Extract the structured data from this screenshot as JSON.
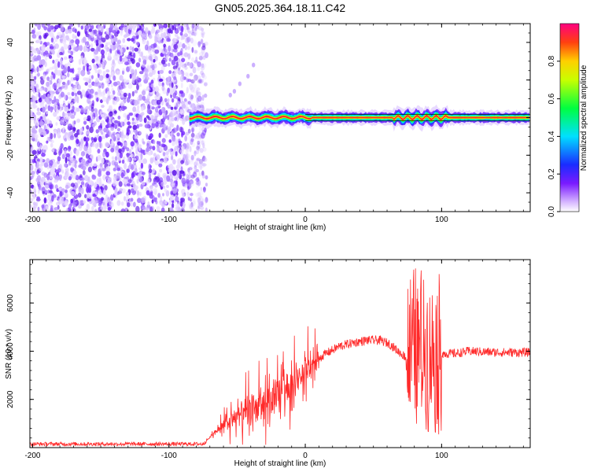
{
  "title": "GN05.2025.364.18.11.C42",
  "chart_data": [
    {
      "type": "heatmap",
      "title": "GN05.2025.364.18.11.C42",
      "xlabel": "Height of straight line (km)",
      "ylabel": "Frequency (Hz)",
      "xlim": [
        -202,
        165
      ],
      "ylim": [
        -50,
        50
      ],
      "xticks": [
        -200,
        -100,
        0,
        100
      ],
      "yticks": [
        -40,
        -20,
        0,
        20,
        40
      ],
      "description_regions": {
        "noise_region_x": [
          -202,
          -77
        ],
        "signal_track_frequency_hz": 0,
        "signal_track_x": [
          -85,
          165
        ]
      },
      "colorbar": {
        "label": "Normalized spectral amplitude",
        "range": [
          0,
          1
        ],
        "ticks": [
          0.0,
          0.2,
          0.4,
          0.6,
          0.8
        ]
      }
    },
    {
      "type": "line",
      "xlabel": "Height of straight line (km)",
      "ylabel": "SNR (10 * v/v)",
      "xlim": [
        -202,
        165
      ],
      "ylim": [
        0,
        7800
      ],
      "xticks": [
        -200,
        -100,
        0,
        100
      ],
      "yticks": [
        2000,
        4000,
        6000
      ],
      "series": [
        {
          "name": "SNR",
          "color": "#ff2a2a",
          "envelope": {
            "x": [
              -202,
              -140,
              -75,
              -65,
              -55,
              -45,
              -35,
              -25,
              -15,
              -5,
              5,
              15,
              25,
              35,
              45,
              55,
              62,
              68,
              75,
              80,
              85,
              90,
              95,
              100,
              110,
              120,
              140,
              165
            ],
            "y": [
              150,
              150,
              150,
              700,
              1100,
              1400,
              1700,
              2000,
              2400,
              2900,
              3500,
              3900,
              4200,
              4350,
              4450,
              4450,
              4300,
              4000,
              3700,
              4000,
              4200,
              4000,
              4000,
              3900,
              3900,
              4000,
              3950,
              3950
            ]
          }
        }
      ]
    }
  ]
}
